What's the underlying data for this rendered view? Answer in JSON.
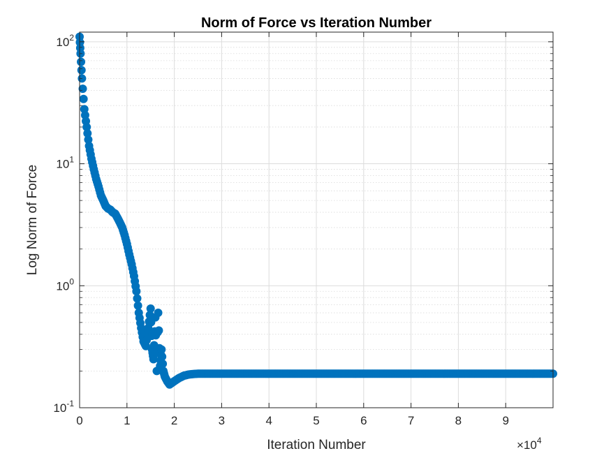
{
  "chart_data": {
    "type": "scatter",
    "title": "Norm of Force vs Iteration Number",
    "xlabel": "Iteration Number",
    "ylabel": "Log Norm of Force",
    "x_exponent_label": "×10",
    "x_exponent_power": "4",
    "xlim": [
      0,
      100000
    ],
    "ylim": [
      0.1,
      120
    ],
    "yscale": "log",
    "grid": true,
    "minor_grid": true,
    "marker_color": "#0072BD",
    "x_ticks": [
      {
        "value": 0,
        "label": "0"
      },
      {
        "value": 10000,
        "label": "1"
      },
      {
        "value": 20000,
        "label": "2"
      },
      {
        "value": 30000,
        "label": "3"
      },
      {
        "value": 40000,
        "label": "4"
      },
      {
        "value": 50000,
        "label": "5"
      },
      {
        "value": 60000,
        "label": "6"
      },
      {
        "value": 70000,
        "label": "7"
      },
      {
        "value": 80000,
        "label": "8"
      },
      {
        "value": 90000,
        "label": "9"
      }
    ],
    "y_ticks": [
      {
        "value": 0.1,
        "base": "10",
        "exp": "-1"
      },
      {
        "value": 1,
        "base": "10",
        "exp": "0"
      },
      {
        "value": 10,
        "base": "10",
        "exp": "1"
      },
      {
        "value": 100,
        "base": "10",
        "exp": "2"
      }
    ],
    "series": [
      {
        "x": [
          0,
          200,
          500,
          1000,
          1500,
          2000,
          2500,
          3000,
          3500,
          4000,
          4500,
          5000,
          5500,
          6000,
          6500,
          7000,
          7500,
          8000,
          8500,
          9000,
          9500,
          10000,
          10500,
          11000,
          11500,
          12000,
          12500,
          13000,
          13500,
          14000,
          14500,
          15000,
          15300,
          15600,
          16000,
          16300,
          16600,
          17000,
          17300,
          17700,
          18000,
          18500,
          19000,
          19500,
          20000,
          21000,
          22000,
          23000,
          24000,
          25000,
          27000,
          30000,
          40000,
          50000,
          60000,
          70000,
          80000,
          90000,
          100000
        ],
        "y": [
          110,
          80,
          50,
          28,
          20,
          14,
          11,
          9,
          7.5,
          6.5,
          5.5,
          5,
          4.5,
          4.3,
          4.2,
          4.0,
          3.9,
          3.6,
          3.3,
          3.0,
          2.6,
          2.2,
          1.8,
          1.5,
          1.2,
          0.9,
          0.6,
          0.45,
          0.35,
          0.32,
          0.45,
          0.65,
          0.3,
          0.25,
          0.55,
          0.2,
          0.6,
          0.22,
          0.3,
          0.2,
          0.18,
          0.165,
          0.155,
          0.16,
          0.165,
          0.175,
          0.183,
          0.187,
          0.189,
          0.19,
          0.19,
          0.19,
          0.19,
          0.19,
          0.19,
          0.19,
          0.19,
          0.19,
          0.19
        ]
      }
    ]
  }
}
